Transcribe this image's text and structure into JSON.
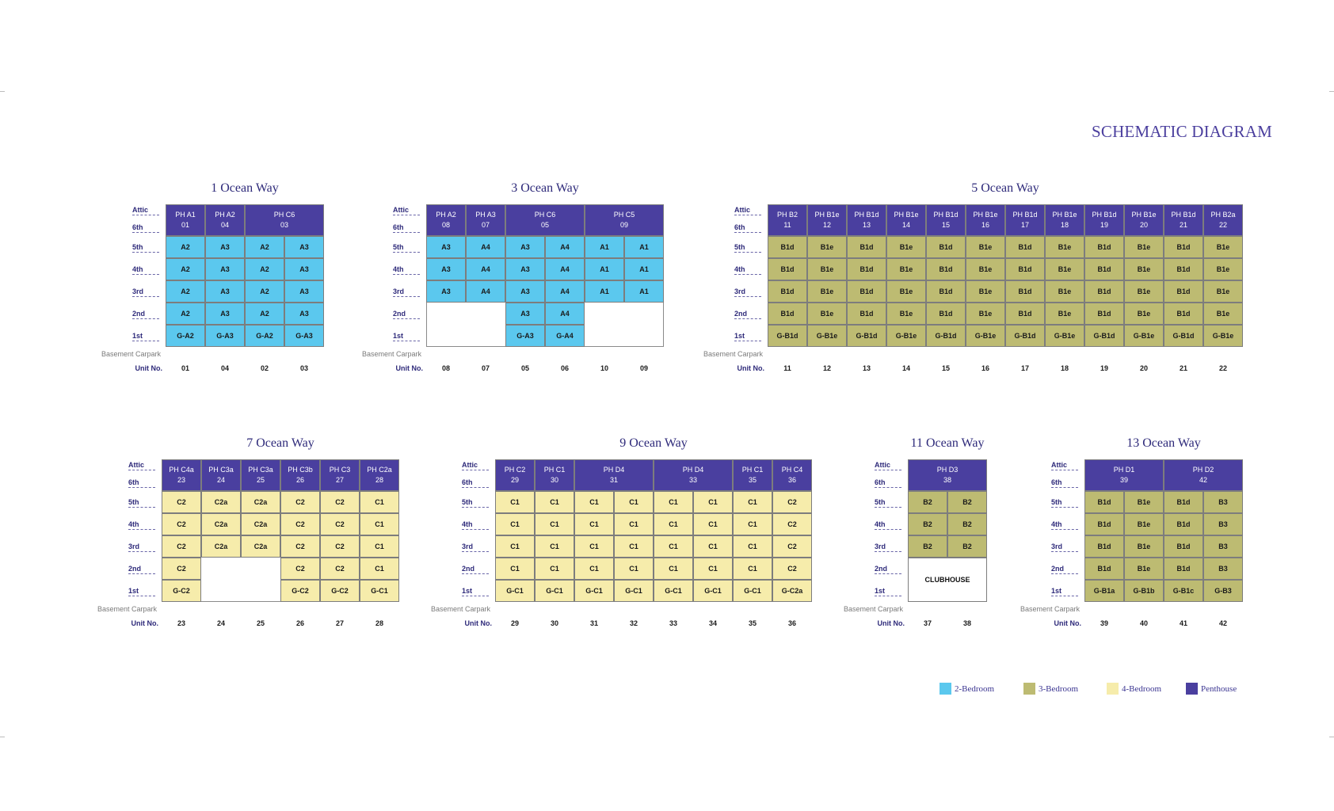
{
  "title": "SCHEMATIC DIAGRAM",
  "colors": {
    "A": "#5bc8ee",
    "B": "#bdbb72",
    "C": "#f6ecab",
    "P": "#4a3f9f",
    "empty": "#ffffff",
    "club": "#ffffff"
  },
  "labels": {
    "floors": [
      "Attic",
      "6th",
      "5th",
      "4th",
      "3rd",
      "2nd",
      "1st"
    ],
    "basement": "Basement Carpark",
    "unit": "Unit No."
  },
  "legend": [
    {
      "color": "#5bc8ee",
      "label": "2-Bedroom"
    },
    {
      "color": "#bdbb72",
      "label": "3-Bedroom"
    },
    {
      "color": "#f6ecab",
      "label": "4-Bedroom"
    },
    {
      "color": "#4a3f9f",
      "label": "Penthouse"
    }
  ],
  "buildings": [
    {
      "name": "1 Ocean Way",
      "units": [
        "01",
        "04",
        "02",
        "03"
      ],
      "ph": [
        {
          "label": "PH A1",
          "no": "01",
          "span": 1
        },
        {
          "label": "PH A2",
          "no": "04",
          "span": 1
        },
        {
          "label": "PH C6",
          "no": "03",
          "span": 2
        }
      ],
      "rows": [
        [
          [
            "A2",
            "A"
          ],
          [
            "A3",
            "A"
          ],
          [
            "A2",
            "A"
          ],
          [
            "A3",
            "A"
          ]
        ],
        [
          [
            "A2",
            "A"
          ],
          [
            "A3",
            "A"
          ],
          [
            "A2",
            "A"
          ],
          [
            "A3",
            "A"
          ]
        ],
        [
          [
            "A2",
            "A"
          ],
          [
            "A3",
            "A"
          ],
          [
            "A2",
            "A"
          ],
          [
            "A3",
            "A"
          ]
        ],
        [
          [
            "A2",
            "A"
          ],
          [
            "A3",
            "A"
          ],
          [
            "A2",
            "A"
          ],
          [
            "A3",
            "A"
          ]
        ],
        [
          [
            "G-A2",
            "A"
          ],
          [
            "G-A3",
            "A"
          ],
          [
            "G-A2",
            "A"
          ],
          [
            "G-A3",
            "A"
          ]
        ]
      ]
    },
    {
      "name": "3 Ocean Way",
      "units": [
        "08",
        "07",
        "05",
        "06",
        "10",
        "09"
      ],
      "ph": [
        {
          "label": "PH A2",
          "no": "08",
          "span": 1
        },
        {
          "label": "PH A3",
          "no": "07",
          "span": 1
        },
        {
          "label": "PH C6",
          "no": "05",
          "span": 2
        },
        {
          "label": "PH C5",
          "no": "09",
          "span": 2
        }
      ],
      "rows": [
        [
          [
            "A3",
            "A"
          ],
          [
            "A4",
            "A"
          ],
          [
            "A3",
            "A"
          ],
          [
            "A4",
            "A"
          ],
          [
            "A1",
            "A"
          ],
          [
            "A1",
            "A"
          ]
        ],
        [
          [
            "A3",
            "A"
          ],
          [
            "A4",
            "A"
          ],
          [
            "A3",
            "A"
          ],
          [
            "A4",
            "A"
          ],
          [
            "A1",
            "A"
          ],
          [
            "A1",
            "A"
          ]
        ],
        [
          [
            "A3",
            "A"
          ],
          [
            "A4",
            "A"
          ],
          [
            "A3",
            "A"
          ],
          [
            "A4",
            "A"
          ],
          [
            "A1",
            "A"
          ],
          [
            "A1",
            "A"
          ]
        ],
        [
          [
            "",
            "E"
          ],
          [
            "",
            "E"
          ],
          [
            "A3",
            "A"
          ],
          [
            "A4",
            "A"
          ],
          [
            "",
            "E"
          ],
          [
            "",
            "E"
          ]
        ],
        [
          [
            "",
            "E"
          ],
          [
            "",
            "E"
          ],
          [
            "G-A3",
            "A"
          ],
          [
            "G-A4",
            "A"
          ],
          [
            "",
            "E"
          ],
          [
            "",
            "E"
          ]
        ]
      ]
    },
    {
      "name": "5 Ocean Way",
      "units": [
        "11",
        "12",
        "13",
        "14",
        "15",
        "16",
        "17",
        "18",
        "19",
        "20",
        "21",
        "22"
      ],
      "ph": [
        {
          "label": "PH B2",
          "no": "11",
          "span": 1
        },
        {
          "label": "PH B1e",
          "no": "12",
          "span": 1
        },
        {
          "label": "PH B1d",
          "no": "13",
          "span": 1
        },
        {
          "label": "PH B1e",
          "no": "14",
          "span": 1
        },
        {
          "label": "PH B1d",
          "no": "15",
          "span": 1
        },
        {
          "label": "PH B1e",
          "no": "16",
          "span": 1
        },
        {
          "label": "PH B1d",
          "no": "17",
          "span": 1
        },
        {
          "label": "PH B1e",
          "no": "18",
          "span": 1
        },
        {
          "label": "PH B1d",
          "no": "19",
          "span": 1
        },
        {
          "label": "PH B1e",
          "no": "20",
          "span": 1
        },
        {
          "label": "PH B1d",
          "no": "21",
          "span": 1
        },
        {
          "label": "PH B2a",
          "no": "22",
          "span": 1
        }
      ],
      "rows": [
        [
          [
            "B1d",
            "B"
          ],
          [
            "B1e",
            "B"
          ],
          [
            "B1d",
            "B"
          ],
          [
            "B1e",
            "B"
          ],
          [
            "B1d",
            "B"
          ],
          [
            "B1e",
            "B"
          ],
          [
            "B1d",
            "B"
          ],
          [
            "B1e",
            "B"
          ],
          [
            "B1d",
            "B"
          ],
          [
            "B1e",
            "B"
          ],
          [
            "B1d",
            "B"
          ],
          [
            "B1e",
            "B"
          ]
        ],
        [
          [
            "B1d",
            "B"
          ],
          [
            "B1e",
            "B"
          ],
          [
            "B1d",
            "B"
          ],
          [
            "B1e",
            "B"
          ],
          [
            "B1d",
            "B"
          ],
          [
            "B1e",
            "B"
          ],
          [
            "B1d",
            "B"
          ],
          [
            "B1e",
            "B"
          ],
          [
            "B1d",
            "B"
          ],
          [
            "B1e",
            "B"
          ],
          [
            "B1d",
            "B"
          ],
          [
            "B1e",
            "B"
          ]
        ],
        [
          [
            "B1d",
            "B"
          ],
          [
            "B1e",
            "B"
          ],
          [
            "B1d",
            "B"
          ],
          [
            "B1e",
            "B"
          ],
          [
            "B1d",
            "B"
          ],
          [
            "B1e",
            "B"
          ],
          [
            "B1d",
            "B"
          ],
          [
            "B1e",
            "B"
          ],
          [
            "B1d",
            "B"
          ],
          [
            "B1e",
            "B"
          ],
          [
            "B1d",
            "B"
          ],
          [
            "B1e",
            "B"
          ]
        ],
        [
          [
            "B1d",
            "B"
          ],
          [
            "B1e",
            "B"
          ],
          [
            "B1d",
            "B"
          ],
          [
            "B1e",
            "B"
          ],
          [
            "B1d",
            "B"
          ],
          [
            "B1e",
            "B"
          ],
          [
            "B1d",
            "B"
          ],
          [
            "B1e",
            "B"
          ],
          [
            "B1d",
            "B"
          ],
          [
            "B1e",
            "B"
          ],
          [
            "B1d",
            "B"
          ],
          [
            "B1e",
            "B"
          ]
        ],
        [
          [
            "G-B1d",
            "B"
          ],
          [
            "G-B1e",
            "B"
          ],
          [
            "G-B1d",
            "B"
          ],
          [
            "G-B1e",
            "B"
          ],
          [
            "G-B1d",
            "B"
          ],
          [
            "G-B1e",
            "B"
          ],
          [
            "G-B1d",
            "B"
          ],
          [
            "G-B1e",
            "B"
          ],
          [
            "G-B1d",
            "B"
          ],
          [
            "G-B1e",
            "B"
          ],
          [
            "G-B1d",
            "B"
          ],
          [
            "G-B1e",
            "B"
          ]
        ]
      ]
    },
    {
      "name": "7 Ocean Way",
      "units": [
        "23",
        "24",
        "25",
        "26",
        "27",
        "28"
      ],
      "ph": [
        {
          "label": "PH C4a",
          "no": "23",
          "span": 1
        },
        {
          "label": "PH C3a",
          "no": "24",
          "span": 1
        },
        {
          "label": "PH C3a",
          "no": "25",
          "span": 1
        },
        {
          "label": "PH C3b",
          "no": "26",
          "span": 1
        },
        {
          "label": "PH C3",
          "no": "27",
          "span": 1
        },
        {
          "label": "PH C2a",
          "no": "28",
          "span": 1
        }
      ],
      "rows": [
        [
          [
            "C2",
            "C"
          ],
          [
            "C2a",
            "C"
          ],
          [
            "C2a",
            "C"
          ],
          [
            "C2",
            "C"
          ],
          [
            "C2",
            "C"
          ],
          [
            "C1",
            "C"
          ]
        ],
        [
          [
            "C2",
            "C"
          ],
          [
            "C2a",
            "C"
          ],
          [
            "C2a",
            "C"
          ],
          [
            "C2",
            "C"
          ],
          [
            "C2",
            "C"
          ],
          [
            "C1",
            "C"
          ]
        ],
        [
          [
            "C2",
            "C"
          ],
          [
            "C2a",
            "C"
          ],
          [
            "C2a",
            "C"
          ],
          [
            "C2",
            "C"
          ],
          [
            "C2",
            "C"
          ],
          [
            "C1",
            "C"
          ]
        ],
        [
          [
            "C2",
            "C"
          ],
          [
            "",
            "E"
          ],
          [
            "",
            "E"
          ],
          [
            "C2",
            "C"
          ],
          [
            "C2",
            "C"
          ],
          [
            "C1",
            "C"
          ]
        ],
        [
          [
            "G-C2",
            "C"
          ],
          [
            "",
            "E"
          ],
          [
            "",
            "E"
          ],
          [
            "G-C2",
            "C"
          ],
          [
            "G-C2",
            "C"
          ],
          [
            "G-C1",
            "C"
          ]
        ]
      ]
    },
    {
      "name": "9 Ocean Way",
      "units": [
        "29",
        "30",
        "31",
        "32",
        "33",
        "34",
        "35",
        "36"
      ],
      "ph": [
        {
          "label": "PH C2",
          "no": "29",
          "span": 1
        },
        {
          "label": "PH C1",
          "no": "30",
          "span": 1
        },
        {
          "label": "PH D4",
          "no": "31",
          "span": 2
        },
        {
          "label": "PH D4",
          "no": "33",
          "span": 2
        },
        {
          "label": "PH C1",
          "no": "35",
          "span": 1
        },
        {
          "label": "PH C4",
          "no": "36",
          "span": 1
        }
      ],
      "rows": [
        [
          [
            "C1",
            "C"
          ],
          [
            "C1",
            "C"
          ],
          [
            "C1",
            "C"
          ],
          [
            "C1",
            "C"
          ],
          [
            "C1",
            "C"
          ],
          [
            "C1",
            "C"
          ],
          [
            "C1",
            "C"
          ],
          [
            "C2",
            "C"
          ]
        ],
        [
          [
            "C1",
            "C"
          ],
          [
            "C1",
            "C"
          ],
          [
            "C1",
            "C"
          ],
          [
            "C1",
            "C"
          ],
          [
            "C1",
            "C"
          ],
          [
            "C1",
            "C"
          ],
          [
            "C1",
            "C"
          ],
          [
            "C2",
            "C"
          ]
        ],
        [
          [
            "C1",
            "C"
          ],
          [
            "C1",
            "C"
          ],
          [
            "C1",
            "C"
          ],
          [
            "C1",
            "C"
          ],
          [
            "C1",
            "C"
          ],
          [
            "C1",
            "C"
          ],
          [
            "C1",
            "C"
          ],
          [
            "C2",
            "C"
          ]
        ],
        [
          [
            "C1",
            "C"
          ],
          [
            "C1",
            "C"
          ],
          [
            "C1",
            "C"
          ],
          [
            "C1",
            "C"
          ],
          [
            "C1",
            "C"
          ],
          [
            "C1",
            "C"
          ],
          [
            "C1",
            "C"
          ],
          [
            "C2",
            "C"
          ]
        ],
        [
          [
            "G-C1",
            "C"
          ],
          [
            "G-C1",
            "C"
          ],
          [
            "G-C1",
            "C"
          ],
          [
            "G-C1",
            "C"
          ],
          [
            "G-C1",
            "C"
          ],
          [
            "G-C1",
            "C"
          ],
          [
            "G-C1",
            "C"
          ],
          [
            "G-C2a",
            "C"
          ]
        ]
      ]
    },
    {
      "name": "11 Ocean Way",
      "units": [
        "37",
        "38"
      ],
      "ph": [
        {
          "label": "PH D3",
          "no": "38",
          "span": 2
        }
      ],
      "club": "CLUBHOUSE",
      "rows": [
        [
          [
            "B2",
            "B"
          ],
          [
            "B2",
            "B"
          ]
        ],
        [
          [
            "B2",
            "B"
          ],
          [
            "B2",
            "B"
          ]
        ],
        [
          [
            "B2",
            "B"
          ],
          [
            "B2",
            "B"
          ]
        ]
      ]
    },
    {
      "name": "13 Ocean Way",
      "units": [
        "39",
        "40",
        "41",
        "42"
      ],
      "ph": [
        {
          "label": "PH D1",
          "no": "39",
          "span": 2
        },
        {
          "label": "PH D2",
          "no": "42",
          "span": 2
        }
      ],
      "rows": [
        [
          [
            "B1d",
            "B"
          ],
          [
            "B1e",
            "B"
          ],
          [
            "B1d",
            "B"
          ],
          [
            "B3",
            "B"
          ]
        ],
        [
          [
            "B1d",
            "B"
          ],
          [
            "B1e",
            "B"
          ],
          [
            "B1d",
            "B"
          ],
          [
            "B3",
            "B"
          ]
        ],
        [
          [
            "B1d",
            "B"
          ],
          [
            "B1e",
            "B"
          ],
          [
            "B1d",
            "B"
          ],
          [
            "B3",
            "B"
          ]
        ],
        [
          [
            "B1d",
            "B"
          ],
          [
            "B1e",
            "B"
          ],
          [
            "B1d",
            "B"
          ],
          [
            "B3",
            "B"
          ]
        ],
        [
          [
            "G-B1a",
            "B"
          ],
          [
            "G-B1b",
            "B"
          ],
          [
            "G-B1c",
            "B"
          ],
          [
            "G-B3",
            "B"
          ]
        ]
      ]
    }
  ]
}
